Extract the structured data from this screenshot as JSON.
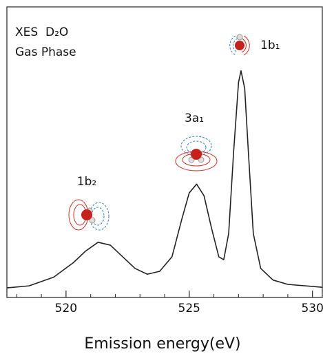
{
  "chart_data": {
    "type": "line",
    "x_label": "Emission energy(eV)",
    "annotations": [
      "XES",
      "D₂O",
      "Gas Phase",
      "1b₁",
      "3a₁",
      "1b₂"
    ],
    "xlim": [
      517.6,
      530.4
    ],
    "ylim": [
      0,
      1
    ],
    "xticks": [
      520,
      525,
      530
    ],
    "xminorticks": [
      518,
      519,
      521,
      522,
      523,
      524,
      526,
      527,
      528,
      529
    ],
    "grid": false,
    "series": [
      {
        "color": "#222222",
        "x": [
          517.6,
          518.5,
          519.5,
          520.3,
          520.8,
          521.3,
          521.8,
          522.3,
          522.8,
          523.3,
          523.8,
          524.3,
          524.7,
          525.0,
          525.3,
          525.6,
          525.9,
          526.2,
          526.4,
          526.6,
          526.8,
          527.0,
          527.1,
          527.25,
          527.4,
          527.6,
          527.9,
          528.4,
          529.0,
          530.4
        ],
        "values": [
          0.033,
          0.04,
          0.07,
          0.12,
          0.16,
          0.19,
          0.18,
          0.14,
          0.1,
          0.08,
          0.09,
          0.14,
          0.27,
          0.36,
          0.39,
          0.35,
          0.24,
          0.14,
          0.13,
          0.22,
          0.5,
          0.74,
          0.78,
          0.72,
          0.5,
          0.22,
          0.1,
          0.06,
          0.045,
          0.035
        ]
      }
    ]
  }
}
